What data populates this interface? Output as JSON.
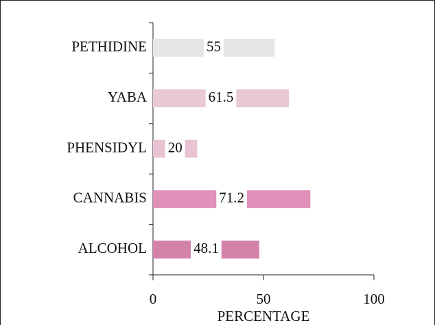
{
  "chart_data": {
    "type": "barh",
    "categories": [
      "PETHIDINE",
      "YABA",
      "PHENSIDYL",
      "CANNABIS",
      "ALCOHOL"
    ],
    "values": [
      55,
      61.5,
      20,
      71.2,
      48.1
    ],
    "colors": [
      "#e6e6e6",
      "#e8c9d5",
      "#e9c3d4",
      "#e090b9",
      "#d482aa"
    ],
    "xlabel": "PERCENTAGE",
    "xlim": [
      0,
      100
    ],
    "xticks": [
      0,
      50,
      100
    ]
  }
}
